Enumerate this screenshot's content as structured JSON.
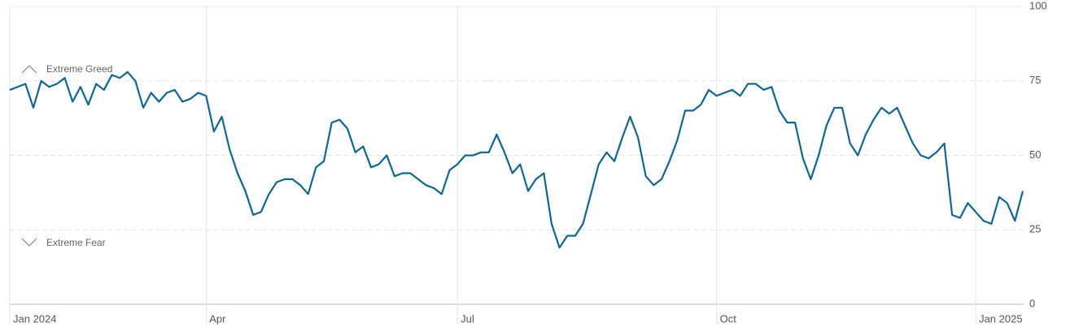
{
  "chart_data": {
    "type": "line",
    "categories": [
      "Jan 2024",
      null,
      null,
      null,
      null,
      null,
      null,
      null,
      null,
      null,
      null,
      null,
      null,
      null,
      null,
      null,
      null,
      null,
      null,
      null,
      null,
      null,
      null,
      null,
      null,
      "Apr",
      null,
      null,
      null,
      null,
      null,
      null,
      null,
      null,
      null,
      null,
      null,
      null,
      null,
      null,
      null,
      null,
      null,
      null,
      null,
      null,
      null,
      null,
      null,
      null,
      null,
      null,
      null,
      null,
      null,
      null,
      null,
      "Jul",
      null,
      null,
      null,
      null,
      null,
      null,
      null,
      null,
      null,
      null,
      null,
      null,
      null,
      null,
      null,
      null,
      null,
      null,
      null,
      null,
      null,
      null,
      null,
      null,
      null,
      null,
      null,
      null,
      null,
      null,
      null,
      null,
      "Oct",
      null,
      null,
      null,
      null,
      null,
      null,
      null,
      null,
      null,
      null,
      null,
      null,
      null,
      null,
      null,
      null,
      null,
      null,
      null,
      null,
      null,
      null,
      null,
      null,
      null,
      null,
      null,
      null,
      null,
      null,
      null,
      null,
      "Jan 2025",
      null,
      null,
      null,
      null,
      null,
      null
    ],
    "series": [
      {
        "color": "#11668f",
        "values": [
          72,
          73,
          74,
          66,
          75,
          73,
          74,
          76,
          68,
          73,
          67,
          74,
          72,
          77,
          76,
          78,
          75,
          66,
          71,
          68,
          71,
          72,
          68,
          69,
          71,
          70,
          58,
          63,
          52,
          44,
          38,
          30,
          31,
          37,
          41,
          42,
          42,
          40,
          37,
          46,
          48,
          61,
          62,
          59,
          51,
          53,
          46,
          47,
          50,
          43,
          44,
          44,
          42,
          40,
          39,
          37,
          45,
          47,
          50,
          50,
          51,
          51,
          57,
          51,
          44,
          47,
          38,
          42,
          44,
          27,
          19,
          23,
          23,
          27,
          37,
          47,
          51,
          48,
          56,
          63,
          56,
          43,
          40,
          42,
          48,
          55,
          65,
          65,
          67,
          72,
          70,
          71,
          72,
          70,
          74,
          74,
          72,
          73,
          65,
          61,
          61,
          49,
          42,
          50,
          60,
          66,
          66,
          54,
          50,
          57,
          62,
          66,
          64,
          66,
          60,
          54,
          50,
          49,
          51,
          54,
          30,
          29,
          34,
          31,
          28,
          27,
          36,
          34,
          28,
          38
        ]
      }
    ],
    "ylim": [
      0,
      100
    ],
    "yticks": [
      0,
      25,
      50,
      75,
      100
    ],
    "grid": true,
    "annotations": [
      "Extreme Greed",
      "Extreme Fear"
    ]
  }
}
